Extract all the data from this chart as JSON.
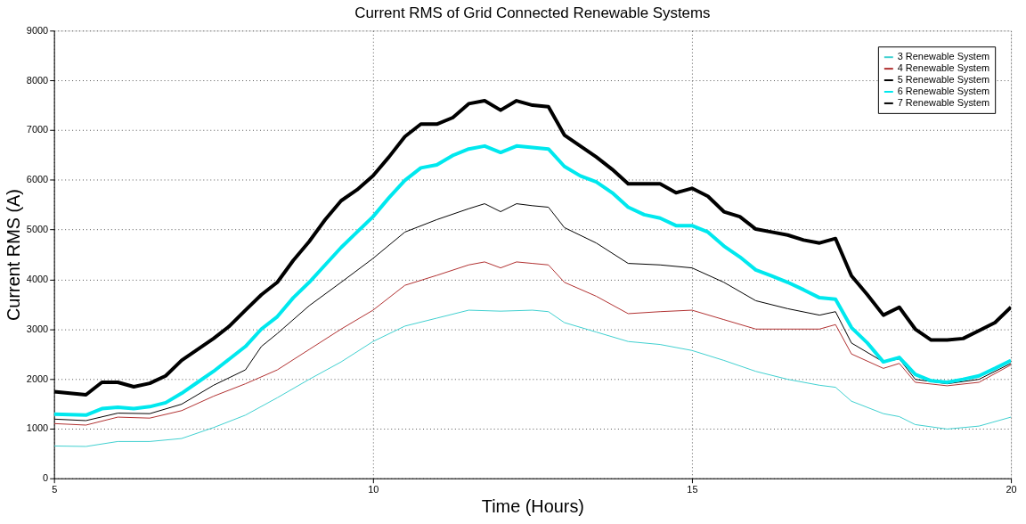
{
  "chart_data": {
    "type": "line",
    "title": "Current RMS of Grid Connected Renewable Systems",
    "xlabel": "Time (Hours)",
    "ylabel": "Current RMS (A)",
    "xlim": [
      5,
      20
    ],
    "xticks": [
      5,
      10,
      15,
      20
    ],
    "ylim": [
      0,
      9000
    ],
    "yticks": [
      0,
      1000,
      2000,
      3000,
      4000,
      5000,
      6000,
      7000,
      8000,
      9000
    ],
    "grid": true,
    "legend": "top right",
    "series": [
      {
        "name": "3 Renewable System",
        "color": "#40d0d0",
        "x": [
          5,
          5.5,
          6,
          6.5,
          7,
          7.5,
          8,
          8.5,
          9,
          9.5,
          10,
          10.5,
          11,
          11.5,
          12,
          12.5,
          12.75,
          13,
          13.5,
          14,
          14.5,
          15,
          15.5,
          16,
          16.5,
          17,
          17.25,
          17.5,
          18,
          18.25,
          18.5,
          19,
          19.5,
          20
        ],
        "values": [
          650,
          640,
          740,
          740,
          800,
          1020,
          1270,
          1620,
          1990,
          2340,
          2750,
          3060,
          3220,
          3380,
          3360,
          3380,
          3350,
          3130,
          2940,
          2750,
          2690,
          2570,
          2370,
          2150,
          1990,
          1870,
          1830,
          1550,
          1300,
          1240,
          1080,
          990,
          1050,
          1230
        ]
      },
      {
        "name": "4 Renewable System",
        "color": "#b03030",
        "x": [
          5,
          5.5,
          6,
          6.5,
          7,
          7.5,
          8,
          8.5,
          9,
          9.5,
          10,
          10.5,
          11,
          11.5,
          11.75,
          12,
          12.25,
          12.5,
          12.75,
          13,
          13.5,
          14,
          14.5,
          15,
          15.5,
          16,
          16.5,
          17,
          17.25,
          17.5,
          18,
          18.25,
          18.5,
          19,
          19.5,
          20
        ],
        "values": [
          1100,
          1070,
          1230,
          1210,
          1360,
          1650,
          1900,
          2180,
          2590,
          3000,
          3380,
          3880,
          4080,
          4290,
          4350,
          4230,
          4350,
          4320,
          4290,
          3940,
          3660,
          3310,
          3350,
          3380,
          3190,
          3000,
          3000,
          3000,
          3090,
          2500,
          2210,
          2310,
          1930,
          1860,
          1930,
          2280
        ]
      },
      {
        "name": "5 Renewable System",
        "color": "#000000",
        "x": [
          5,
          5.5,
          6,
          6.5,
          7,
          7.5,
          8,
          8.25,
          8.5,
          9,
          9.5,
          10,
          10.5,
          11,
          11.5,
          11.75,
          12,
          12.25,
          12.5,
          12.75,
          13,
          13.5,
          14,
          14.5,
          15,
          15.5,
          16,
          16.5,
          17,
          17.25,
          17.5,
          18,
          18.25,
          18.5,
          19,
          19.5,
          20
        ],
        "values": [
          1190,
          1160,
          1310,
          1300,
          1490,
          1870,
          2180,
          2650,
          2910,
          3470,
          3940,
          4420,
          4950,
          5200,
          5420,
          5520,
          5360,
          5520,
          5480,
          5450,
          5040,
          4730,
          4320,
          4290,
          4230,
          3940,
          3570,
          3410,
          3280,
          3350,
          2720,
          2340,
          2400,
          1990,
          1900,
          1990,
          2310
        ]
      },
      {
        "name": "6 Renewable System",
        "color": "#00e8ee",
        "x": [
          5,
          5.5,
          5.75,
          6,
          6.25,
          6.5,
          6.75,
          7,
          7.25,
          7.5,
          7.75,
          8,
          8.25,
          8.5,
          8.75,
          9,
          9.25,
          9.5,
          9.75,
          10,
          10.25,
          10.5,
          10.75,
          11,
          11.25,
          11.5,
          11.75,
          12,
          12.25,
          12.5,
          12.75,
          13,
          13.25,
          13.5,
          13.75,
          14,
          14.25,
          14.5,
          14.75,
          15,
          15.25,
          15.5,
          15.75,
          16,
          16.25,
          16.5,
          16.75,
          17,
          17.25,
          17.5,
          17.75,
          18,
          18.25,
          18.5,
          18.75,
          19,
          19.25,
          19.5,
          19.75,
          20
        ],
        "values": [
          1290,
          1270,
          1400,
          1430,
          1400,
          1440,
          1520,
          1710,
          1930,
          2150,
          2400,
          2650,
          3000,
          3250,
          3630,
          3940,
          4290,
          4640,
          4950,
          5260,
          5640,
          5990,
          6240,
          6300,
          6490,
          6620,
          6680,
          6550,
          6680,
          6650,
          6620,
          6270,
          6080,
          5960,
          5740,
          5450,
          5300,
          5230,
          5080,
          5080,
          4950,
          4670,
          4450,
          4190,
          4070,
          3940,
          3790,
          3630,
          3600,
          3030,
          2720,
          2340,
          2430,
          2090,
          1960,
          1930,
          1990,
          2060,
          2210,
          2370
        ]
      },
      {
        "name": "7 Renewable System",
        "color": "#000000",
        "x": [
          5,
          5.5,
          5.75,
          6,
          6.25,
          6.5,
          6.75,
          7,
          7.25,
          7.5,
          7.75,
          8,
          8.25,
          8.5,
          8.75,
          9,
          9.25,
          9.5,
          9.75,
          10,
          10.25,
          10.5,
          10.75,
          11,
          11.25,
          11.5,
          11.75,
          12,
          12.25,
          12.5,
          12.75,
          13,
          13.25,
          13.5,
          13.75,
          14,
          14.25,
          14.5,
          14.75,
          15,
          15.25,
          15.5,
          15.75,
          16,
          16.25,
          16.5,
          16.75,
          17,
          17.25,
          17.5,
          17.75,
          18,
          18.25,
          18.5,
          18.75,
          19,
          19.25,
          19.5,
          19.75,
          20
        ],
        "values": [
          1740,
          1680,
          1930,
          1930,
          1840,
          1910,
          2060,
          2370,
          2590,
          2810,
          3060,
          3380,
          3690,
          3940,
          4380,
          4760,
          5200,
          5580,
          5800,
          6080,
          6460,
          6870,
          7120,
          7120,
          7250,
          7530,
          7590,
          7400,
          7590,
          7500,
          7470,
          6900,
          6680,
          6460,
          6210,
          5920,
          5920,
          5920,
          5740,
          5830,
          5670,
          5360,
          5260,
          5010,
          4950,
          4890,
          4790,
          4730,
          4820,
          4070,
          3690,
          3280,
          3440,
          3000,
          2780,
          2780,
          2810,
          2970,
          3130,
          3440
        ]
      }
    ]
  }
}
